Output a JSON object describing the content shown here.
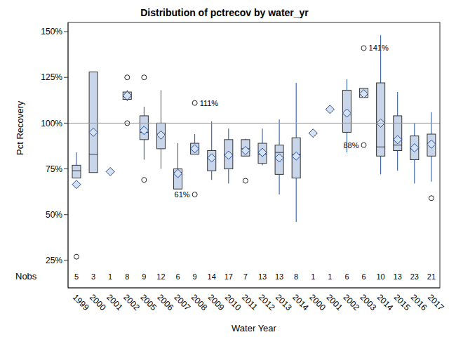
{
  "chart_data": {
    "type": "box",
    "title": "Distribution of pctrecov by water_yr",
    "x_label": "Water Year",
    "y_label": "Pct Recovery",
    "categories": [
      "1999",
      "2000",
      "2001",
      "2002",
      "2005",
      "2006",
      "2007",
      "2008",
      "2009",
      "2010",
      "2011",
      "2012",
      "2013",
      "2014",
      "2000",
      "2001",
      "2002",
      "2003",
      "2014",
      "2015",
      "2016",
      "2017"
    ],
    "whisker_low": [
      70,
      73,
      73.5,
      112,
      80,
      75,
      64,
      83,
      69,
      67,
      82,
      77,
      61,
      46,
      94.5,
      107.5,
      84,
      114,
      72,
      74,
      67,
      68
    ],
    "q1": [
      70,
      73,
      73.5,
      113,
      91,
      86,
      64,
      83,
      74,
      75,
      82,
      78,
      72,
      70,
      94.5,
      107.5,
      95,
      114,
      82,
      85,
      80,
      82
    ],
    "median": [
      74,
      83,
      73.5,
      115,
      95,
      94,
      73,
      86,
      81,
      83,
      86,
      83,
      84,
      83,
      94.5,
      107.5,
      105,
      116,
      87,
      88,
      86,
      89
    ],
    "q3": [
      77,
      128,
      73.5,
      117,
      104,
      100,
      75,
      89,
      85,
      91,
      91,
      89,
      88,
      92,
      94.5,
      107.5,
      118,
      119,
      122,
      104,
      93,
      94
    ],
    "whisker_high": [
      84,
      128,
      73.5,
      118,
      109,
      118,
      89,
      94,
      101,
      97,
      91.5,
      97,
      102,
      122,
      94.5,
      107.5,
      124,
      119,
      148,
      117,
      100,
      106
    ],
    "mean": [
      66.5,
      95,
      73.5,
      115,
      96,
      93.5,
      72.5,
      86,
      81,
      82.5,
      85,
      84,
      81,
      82,
      94.5,
      107.5,
      105.5,
      116,
      100,
      91,
      86.5,
      88.5
    ],
    "outliers": [
      [
        27
      ],
      [],
      [],
      [
        125,
        100
      ],
      [
        125,
        69
      ],
      [],
      [],
      [
        {
          "value": 111,
          "label": "111%"
        },
        {
          "value": 61,
          "label": "61%"
        }
      ],
      [],
      [],
      [
        68.5
      ],
      [],
      [],
      [],
      [],
      [],
      [],
      [
        {
          "value": 141,
          "label": "141%"
        },
        {
          "value": 88,
          "label": "88%"
        }
      ],
      [],
      [],
      [],
      [
        59
      ]
    ],
    "nobs_label": "Nobs",
    "nobs": [
      5,
      3,
      1,
      8,
      9,
      12,
      6,
      9,
      14,
      17,
      7,
      13,
      13,
      8,
      1,
      1,
      6,
      6,
      10,
      13,
      23,
      21
    ],
    "reference_line": 100,
    "ylim": [
      10,
      155
    ],
    "yticks": [
      {
        "value": 25,
        "label": "25%"
      },
      {
        "value": 50,
        "label": "50%"
      },
      {
        "value": 75,
        "label": "75%"
      },
      {
        "value": 100,
        "label": "100%"
      },
      {
        "value": 125,
        "label": "125%"
      },
      {
        "value": 150,
        "label": "150%"
      }
    ],
    "color": "#c9d5e8"
  }
}
